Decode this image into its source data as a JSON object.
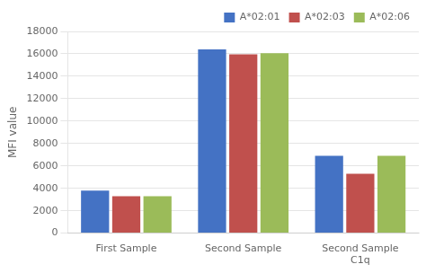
{
  "chart_data": {
    "type": "bar",
    "categories": [
      "First Sample",
      "Second Sample",
      "Second Sample\nC1q"
    ],
    "series": [
      {
        "name": "A*02:01",
        "color": "#4472C4",
        "values": [
          3800,
          16400,
          6900
        ]
      },
      {
        "name": "A*02:03",
        "color": "#C0504D",
        "values": [
          3300,
          15950,
          5300
        ]
      },
      {
        "name": "A*02:06",
        "color": "#9BBB59",
        "values": [
          3300,
          16050,
          6900
        ]
      }
    ],
    "ylabel": "MFI value",
    "ylim": [
      0,
      18000
    ],
    "yticks": [
      0,
      2000,
      4000,
      6000,
      8000,
      10000,
      12000,
      14000,
      16000,
      18000
    ],
    "grid": true,
    "legend": "upper right"
  }
}
